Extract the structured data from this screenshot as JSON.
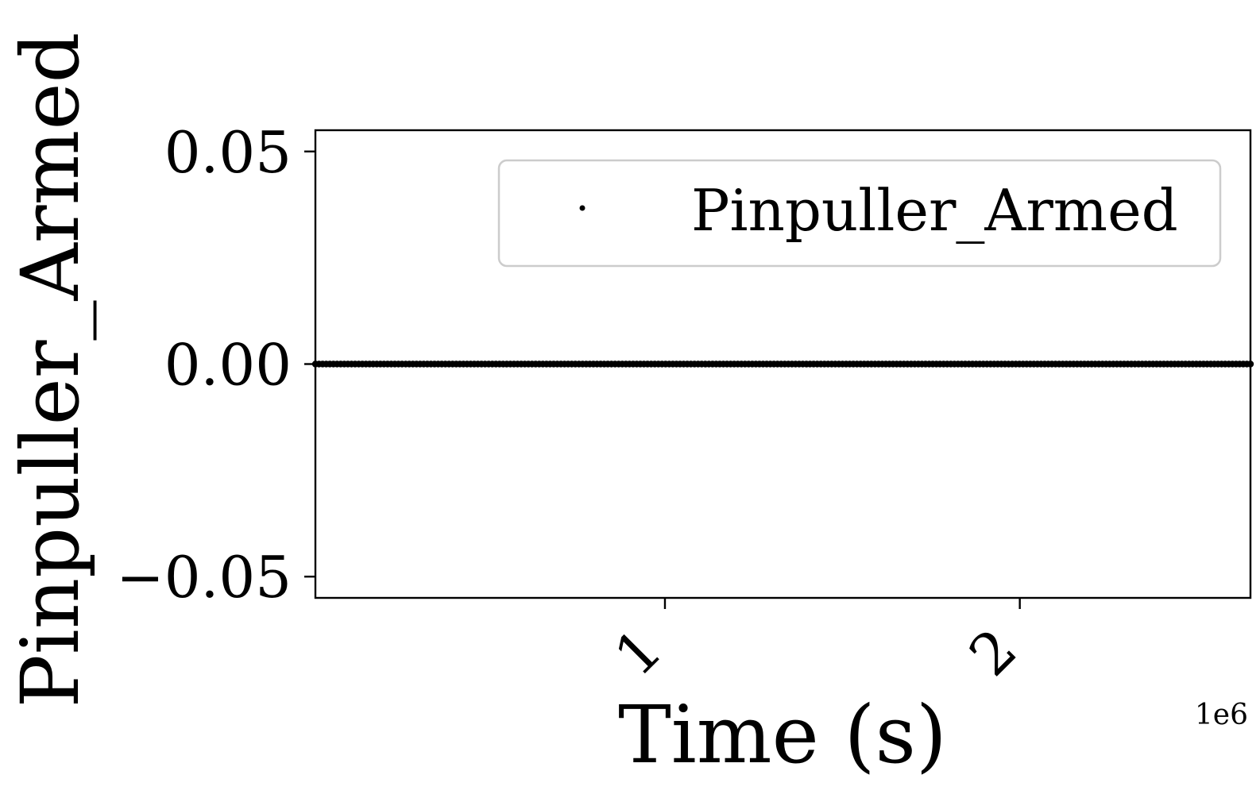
{
  "chart_data": {
    "type": "scatter",
    "title": "",
    "xlabel": "Time (s)",
    "ylabel": "Pinpuller_Armed",
    "x_offset_label": "1e6",
    "xlim": [
      15000,
      2650000
    ],
    "ylim": [
      -0.055,
      0.055
    ],
    "x_ticks": [
      {
        "value": 1000000,
        "label": "1"
      },
      {
        "value": 2000000,
        "label": "2"
      }
    ],
    "y_ticks": [
      {
        "value": 0.05,
        "label": "0.05"
      },
      {
        "value": 0.0,
        "label": "0.00"
      },
      {
        "value": -0.05,
        "label": "−0.05"
      }
    ],
    "grid": false,
    "legend": {
      "position": "top-right",
      "entries": [
        "Pinpuller_Armed"
      ]
    },
    "series": [
      {
        "name": "Pinpuller_Armed",
        "color": "#000000",
        "marker": "point",
        "x_range": [
          15000,
          2650000
        ],
        "y_constant": 0,
        "n_points": 260
      }
    ]
  }
}
